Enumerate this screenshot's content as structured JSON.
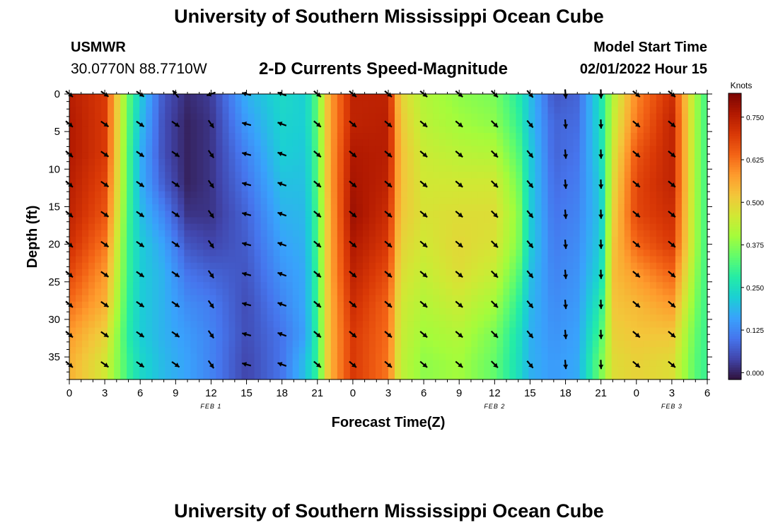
{
  "page": {
    "title": "University of Southern Mississippi Ocean Cube",
    "station": "USMWR",
    "coordinates": "30.0770N  88.7710W",
    "model_start_label": "Model Start Time",
    "model_start_value": "02/01/2022 Hour 15",
    "footer_title": "University of Southern Mississippi Ocean Cube"
  },
  "chart_data": {
    "type": "heatmap",
    "title": "2-D Currents Speed-Magnitude",
    "xlabel": "Forecast Time(Z)",
    "ylabel": "Depth (ft)",
    "colorbar_label": "Knots",
    "x_tick_labels": [
      "0",
      "3",
      "6",
      "9",
      "12",
      "15",
      "18",
      "21",
      "0",
      "3",
      "6",
      "9",
      "12",
      "15",
      "18",
      "21",
      "0",
      "3",
      "6"
    ],
    "date_labels": [
      {
        "text": "FEB 1",
        "hour": 12
      },
      {
        "text": "FEB 2",
        "hour": 36
      },
      {
        "text": "FEB 3",
        "hour": 51
      }
    ],
    "xlim_hours": [
      0,
      54
    ],
    "y_ticks": [
      0,
      5,
      10,
      15,
      20,
      25,
      30,
      35
    ],
    "ylim": [
      0,
      38
    ],
    "y_inverted": true,
    "colorbar": {
      "ticks": [
        "0.000",
        "0.125",
        "0.250",
        "0.375",
        "0.500",
        "0.625",
        "0.750"
      ],
      "range": [
        -0.02,
        0.82
      ],
      "colors": [
        "#30123b",
        "#4145ab",
        "#4675ed",
        "#39a2fc",
        "#1bcfd4",
        "#24eca6",
        "#61fc6c",
        "#a4fc3b",
        "#d1e834",
        "#f3c63a",
        "#fe9b2d",
        "#f36315",
        "#d93806",
        "#b11901",
        "#7a0403"
      ]
    },
    "depths_ft": [
      0,
      4,
      8,
      12,
      16,
      20,
      24,
      28,
      32,
      36
    ],
    "speed_knots": [
      {
        "hour": 0,
        "values": [
          0.75,
          0.76,
          0.76,
          0.75,
          0.74,
          0.72,
          0.68,
          0.63,
          0.58,
          0.55
        ]
      },
      {
        "hour": 3,
        "values": [
          0.7,
          0.7,
          0.7,
          0.68,
          0.66,
          0.62,
          0.58,
          0.55,
          0.5,
          0.46
        ]
      },
      {
        "hour": 5,
        "values": [
          0.34,
          0.33,
          0.32,
          0.32,
          0.31,
          0.3,
          0.3,
          0.29,
          0.28,
          0.3
        ]
      },
      {
        "hour": 6,
        "values": [
          0.22,
          0.2,
          0.18,
          0.18,
          0.2,
          0.22,
          0.22,
          0.22,
          0.22,
          0.24
        ]
      },
      {
        "hour": 8,
        "values": [
          0.06,
          0.05,
          0.05,
          0.07,
          0.12,
          0.16,
          0.18,
          0.18,
          0.18,
          0.19
        ]
      },
      {
        "hour": 10,
        "values": [
          0.01,
          0.0,
          0.0,
          0.0,
          0.02,
          0.06,
          0.1,
          0.13,
          0.15,
          0.16
        ]
      },
      {
        "hour": 12,
        "values": [
          0.03,
          0.02,
          0.02,
          0.02,
          0.02,
          0.04,
          0.08,
          0.11,
          0.12,
          0.12
        ]
      },
      {
        "hour": 15,
        "values": [
          0.18,
          0.15,
          0.12,
          0.1,
          0.08,
          0.07,
          0.06,
          0.05,
          0.05,
          0.04
        ]
      },
      {
        "hour": 18,
        "values": [
          0.24,
          0.23,
          0.22,
          0.2,
          0.18,
          0.16,
          0.14,
          0.12,
          0.1,
          0.1
        ]
      },
      {
        "hour": 20,
        "values": [
          0.22,
          0.22,
          0.21,
          0.2,
          0.19,
          0.18,
          0.17,
          0.17,
          0.16,
          0.2
        ]
      },
      {
        "hour": 21,
        "values": [
          0.34,
          0.34,
          0.33,
          0.33,
          0.32,
          0.32,
          0.31,
          0.31,
          0.3,
          0.3
        ]
      },
      {
        "hour": 22,
        "values": [
          0.56,
          0.56,
          0.56,
          0.56,
          0.55,
          0.55,
          0.55,
          0.54,
          0.54,
          0.54
        ]
      },
      {
        "hour": 24,
        "values": [
          0.74,
          0.74,
          0.76,
          0.77,
          0.78,
          0.76,
          0.74,
          0.72,
          0.7,
          0.7
        ]
      },
      {
        "hour": 27,
        "values": [
          0.74,
          0.75,
          0.75,
          0.74,
          0.72,
          0.7,
          0.67,
          0.64,
          0.63,
          0.62
        ]
      },
      {
        "hour": 28,
        "values": [
          0.5,
          0.52,
          0.53,
          0.53,
          0.52,
          0.5,
          0.48,
          0.46,
          0.45,
          0.44
        ]
      },
      {
        "hour": 30,
        "values": [
          0.42,
          0.43,
          0.45,
          0.46,
          0.47,
          0.46,
          0.44,
          0.42,
          0.4,
          0.38
        ]
      },
      {
        "hour": 33,
        "values": [
          0.38,
          0.4,
          0.43,
          0.46,
          0.48,
          0.49,
          0.48,
          0.45,
          0.42,
          0.4
        ]
      },
      {
        "hour": 36,
        "values": [
          0.36,
          0.38,
          0.42,
          0.46,
          0.48,
          0.47,
          0.44,
          0.4,
          0.36,
          0.34
        ]
      },
      {
        "hour": 38,
        "values": [
          0.28,
          0.3,
          0.33,
          0.36,
          0.38,
          0.37,
          0.33,
          0.29,
          0.26,
          0.25
        ]
      },
      {
        "hour": 39,
        "values": [
          0.2,
          0.2,
          0.22,
          0.22,
          0.22,
          0.22,
          0.2,
          0.19,
          0.18,
          0.18
        ]
      },
      {
        "hour": 41,
        "values": [
          0.06,
          0.08,
          0.08,
          0.09,
          0.1,
          0.11,
          0.12,
          0.13,
          0.14,
          0.15
        ]
      },
      {
        "hour": 43,
        "values": [
          0.08,
          0.09,
          0.1,
          0.11,
          0.12,
          0.13,
          0.14,
          0.15,
          0.16,
          0.17
        ]
      },
      {
        "hour": 45,
        "values": [
          0.26,
          0.25,
          0.24,
          0.22,
          0.21,
          0.22,
          0.24,
          0.28,
          0.32,
          0.36
        ]
      },
      {
        "hour": 46,
        "values": [
          0.42,
          0.44,
          0.46,
          0.48,
          0.5,
          0.52,
          0.53,
          0.52,
          0.5,
          0.48
        ]
      },
      {
        "hour": 48,
        "values": [
          0.6,
          0.62,
          0.66,
          0.68,
          0.68,
          0.64,
          0.58,
          0.54,
          0.52,
          0.5
        ]
      },
      {
        "hour": 51,
        "values": [
          0.72,
          0.74,
          0.74,
          0.74,
          0.72,
          0.7,
          0.64,
          0.58,
          0.52,
          0.48
        ]
      },
      {
        "hour": 53,
        "values": [
          0.4,
          0.4,
          0.4,
          0.4,
          0.4,
          0.4,
          0.38,
          0.36,
          0.34,
          0.33
        ]
      },
      {
        "hour": 54,
        "values": [
          0.3,
          0.3,
          0.3,
          0.3,
          0.3,
          0.3,
          0.3,
          0.3,
          0.3,
          0.3
        ]
      }
    ],
    "vector_depths_ft": [
      0,
      4,
      8,
      12,
      16,
      20,
      24,
      28,
      32,
      36
    ],
    "vector_directions_deg": [
      {
        "hour": 0,
        "dir": 130
      },
      {
        "hour": 3,
        "dir": 125
      },
      {
        "hour": 6,
        "dir": 125
      },
      {
        "hour": 9,
        "dir": 125,
        "surface_dir": 320
      },
      {
        "hour": 12,
        "dir": 145,
        "surface_dir": 250
      },
      {
        "hour": 15,
        "dir": 285
      },
      {
        "hour": 18,
        "dir": 290
      },
      {
        "hour": 21,
        "dir": 130
      },
      {
        "hour": 24,
        "dir": 130
      },
      {
        "hour": 27,
        "dir": 130
      },
      {
        "hour": 30,
        "dir": 130
      },
      {
        "hour": 33,
        "dir": 130
      },
      {
        "hour": 36,
        "dir": 135
      },
      {
        "hour": 39,
        "dir": 140
      },
      {
        "hour": 42,
        "dir": 175
      },
      {
        "hour": 45,
        "dir": 178
      },
      {
        "hour": 48,
        "dir": 130
      },
      {
        "hour": 51,
        "dir": 130
      }
    ]
  }
}
